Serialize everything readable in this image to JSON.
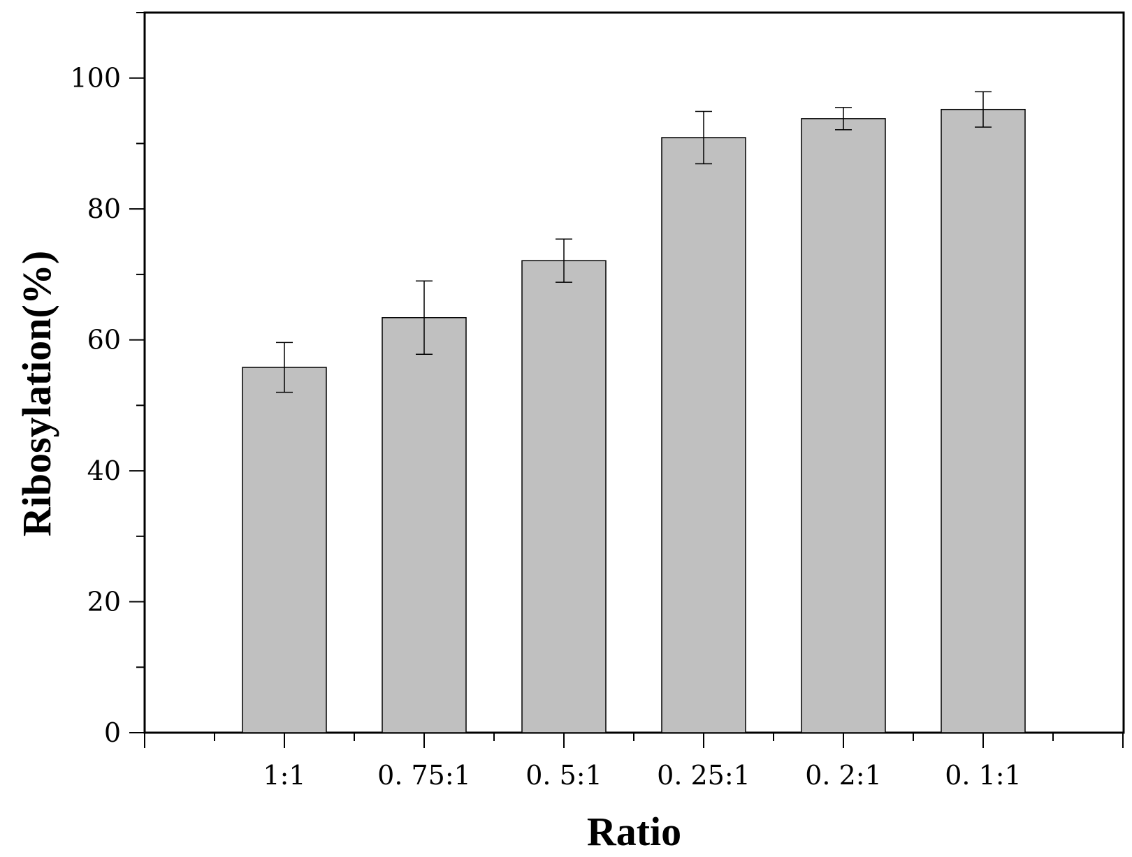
{
  "chart_data": {
    "type": "bar",
    "title": "",
    "xlabel": "Ratio",
    "ylabel": "Ribosylation(%)",
    "categories": [
      "1:1",
      "0. 75:1",
      "0. 5:1",
      "0. 25:1",
      "0. 2:1",
      "0. 1:1"
    ],
    "series": [
      {
        "name": "Ribosylation",
        "values": [
          55.8,
          63.4,
          72.1,
          90.9,
          93.8,
          95.2
        ],
        "errors": [
          3.8,
          5.6,
          3.3,
          4.0,
          1.7,
          2.7
        ]
      }
    ],
    "ylim": [
      0,
      110
    ],
    "yticks": [
      0,
      20,
      40,
      60,
      80,
      100
    ],
    "grid": false,
    "legend": "none",
    "bar_color": "#c0c0c0"
  }
}
